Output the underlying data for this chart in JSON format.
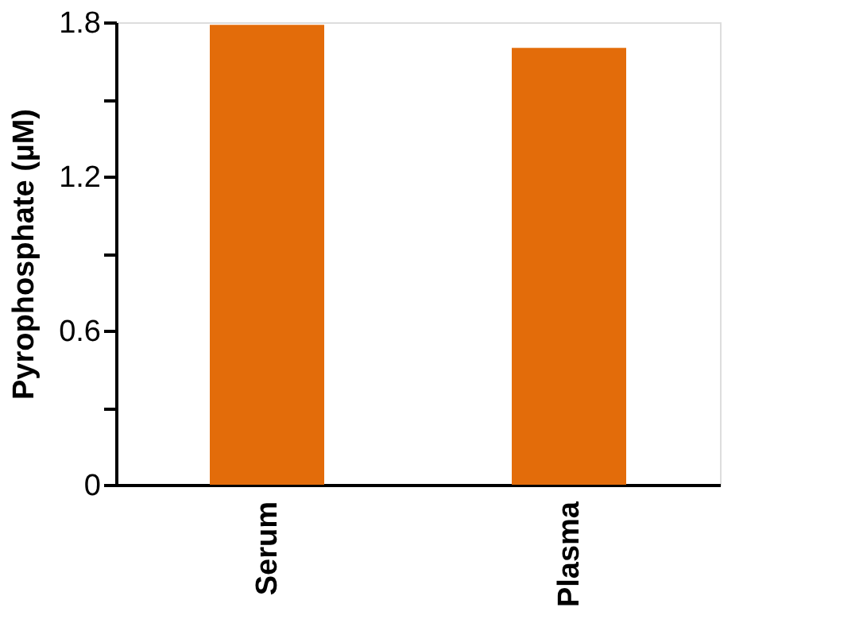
{
  "chart_data": {
    "type": "bar",
    "ylabel": "Pyrophosphate (µM)",
    "categories": [
      "Serum",
      "Plasma"
    ],
    "values": [
      1.79,
      1.7
    ],
    "color": "#e36c0a",
    "ylim": [
      0,
      1.8
    ],
    "yticks": [
      0,
      {
        "value": 0.3,
        "label": null
      },
      0.6,
      {
        "value": 0.9,
        "label": null
      },
      1.2,
      {
        "value": 1.5,
        "label": null
      },
      1.8
    ],
    "grid": false
  }
}
